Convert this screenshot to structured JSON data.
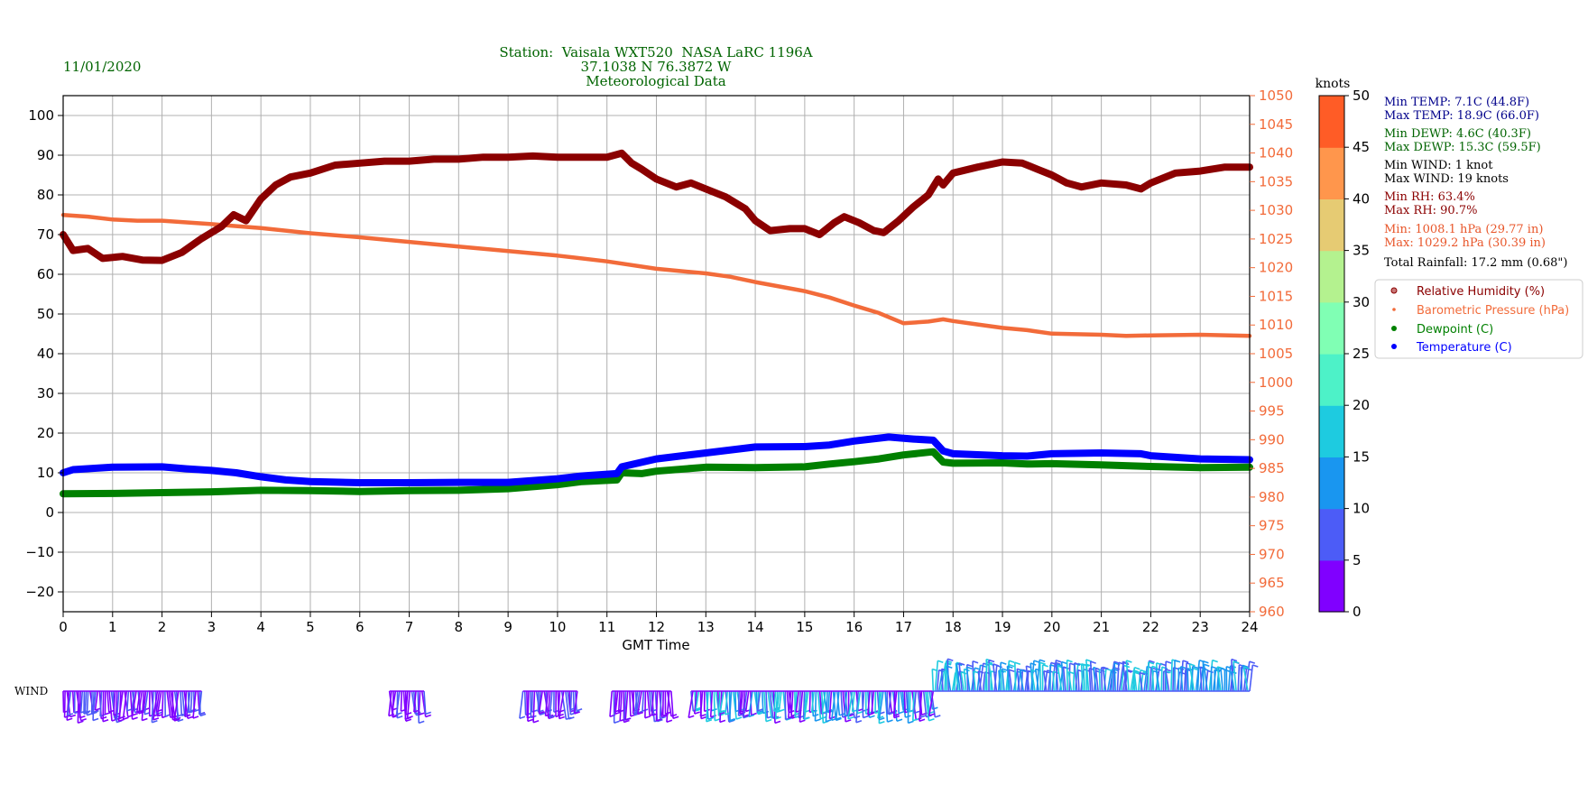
{
  "date": "11/01/2020",
  "title_lines": [
    "Station:  Vaisala WXT520  NASA LaRC 1196A",
    "37.1038 N 76.3872 W",
    "Meteorological Data"
  ],
  "stats": {
    "min_temp": "Min TEMP: 7.1C (44.8F)",
    "max_temp": "Max TEMP: 18.9C (66.0F)",
    "min_dewp": "Min DEWP: 4.6C (40.3F)",
    "max_dewp": "Max DEWP: 15.3C (59.5F)",
    "min_wind": "Min WIND: 1 knot",
    "max_wind": "Max WIND: 19 knots",
    "min_rh": "Min RH: 63.4%",
    "max_rh": "Max RH: 90.7%",
    "min_press": "Min: 1008.1 hPa (29.77 in)",
    "max_press": "Max: 1029.2 hPa (30.39 in)",
    "rainfall": "Total Rainfall: 17.2 mm (0.68\")"
  },
  "colors": {
    "title": "#006400",
    "temp_stats": "#00008b",
    "dewp_stats": "#006400",
    "wind_stats": "#000000",
    "rh_stats": "#8b0000",
    "press_stats": "#e8562a",
    "rh_series": "#8b0000",
    "press_series": "#f26b3a",
    "press_axis": "#f26b3a",
    "dewp_series": "#008000",
    "temp_series": "#0000ff",
    "grid": "#b0b0b0"
  },
  "colorbar": {
    "label": "knots",
    "ticks": [
      "0",
      "5",
      "10",
      "15",
      "20",
      "25",
      "30",
      "35",
      "40",
      "45",
      "50"
    ],
    "colors": [
      "#8000ff",
      "#4c5cf7",
      "#1996f0",
      "#1ecbe0",
      "#4df2c8",
      "#80ffb4",
      "#b4f28f",
      "#e6cb73",
      "#ff964c",
      "#ff5c26",
      "#ff0000"
    ]
  },
  "wind_label": "WIND",
  "chart_data": {
    "type": "line",
    "title": "Station:  Vaisala WXT520  NASA LaRC 1196A\n37.1038 N 76.3872 W\nMeteorological Data",
    "xlabel": "GMT Time",
    "xlim": [
      0,
      24
    ],
    "x_ticks": [
      "0",
      "1",
      "2",
      "3",
      "4",
      "5",
      "6",
      "7",
      "8",
      "9",
      "10",
      "11",
      "12",
      "13",
      "14",
      "15",
      "16",
      "17",
      "18",
      "19",
      "20",
      "21",
      "22",
      "23",
      "24"
    ],
    "ylim_left": [
      -25,
      105
    ],
    "y_ticks_left": [
      "−20",
      "−10",
      "0",
      "10",
      "20",
      "30",
      "40",
      "50",
      "60",
      "70",
      "80",
      "90",
      "100"
    ],
    "ylim_right": [
      960,
      1050
    ],
    "y_ticks_right": [
      "960",
      "965",
      "970",
      "975",
      "980",
      "985",
      "990",
      "995",
      "1000",
      "1005",
      "1010",
      "1015",
      "1020",
      "1025",
      "1030",
      "1035",
      "1040",
      "1045",
      "1050"
    ],
    "grid": true,
    "legend_position": "right",
    "legend": [
      {
        "name": "Relative Humidity (%)",
        "marker": "ring"
      },
      {
        "name": "Barometric Pressure (hPa)",
        "marker": "dot-small"
      },
      {
        "name": "Dewpoint (C)",
        "marker": "dot"
      },
      {
        "name": "Temperature (C)",
        "marker": "dot"
      }
    ],
    "series": [
      {
        "name": "Relative Humidity (%)",
        "axis": "left",
        "points": [
          [
            0,
            70
          ],
          [
            0.2,
            66
          ],
          [
            0.5,
            66.5
          ],
          [
            0.8,
            64
          ],
          [
            1.2,
            64.5
          ],
          [
            1.6,
            63.6
          ],
          [
            2,
            63.5
          ],
          [
            2.4,
            65.5
          ],
          [
            2.8,
            69
          ],
          [
            3.2,
            72
          ],
          [
            3.45,
            75
          ],
          [
            3.7,
            73.5
          ],
          [
            4,
            79
          ],
          [
            4.3,
            82.5
          ],
          [
            4.6,
            84.5
          ],
          [
            5,
            85.5
          ],
          [
            5.5,
            87.5
          ],
          [
            6,
            88
          ],
          [
            6.5,
            88.5
          ],
          [
            7,
            88.5
          ],
          [
            7.5,
            89
          ],
          [
            8,
            89
          ],
          [
            8.5,
            89.5
          ],
          [
            9,
            89.5
          ],
          [
            9.5,
            89.8
          ],
          [
            10,
            89.5
          ],
          [
            10.5,
            89.5
          ],
          [
            11,
            89.5
          ],
          [
            11.3,
            90.5
          ],
          [
            11.5,
            88
          ],
          [
            11.7,
            86.5
          ],
          [
            12,
            84
          ],
          [
            12.4,
            82
          ],
          [
            12.7,
            83
          ],
          [
            13,
            81.5
          ],
          [
            13.4,
            79.5
          ],
          [
            13.8,
            76.5
          ],
          [
            14,
            73.5
          ],
          [
            14.3,
            71
          ],
          [
            14.7,
            71.5
          ],
          [
            15,
            71.5
          ],
          [
            15.3,
            70
          ],
          [
            15.6,
            73
          ],
          [
            15.8,
            74.5
          ],
          [
            16.1,
            73
          ],
          [
            16.4,
            71
          ],
          [
            16.6,
            70.5
          ],
          [
            16.9,
            73.5
          ],
          [
            17.2,
            77
          ],
          [
            17.5,
            80
          ],
          [
            17.7,
            84
          ],
          [
            17.8,
            82.5
          ],
          [
            18,
            85.5
          ],
          [
            18.5,
            87
          ],
          [
            19,
            88.3
          ],
          [
            19.4,
            88
          ],
          [
            19.7,
            86.5
          ],
          [
            20,
            85
          ],
          [
            20.3,
            83
          ],
          [
            20.6,
            82
          ],
          [
            21,
            83
          ],
          [
            21.5,
            82.5
          ],
          [
            21.8,
            81.5
          ],
          [
            22,
            83
          ],
          [
            22.5,
            85.5
          ],
          [
            23,
            86
          ],
          [
            23.5,
            87
          ],
          [
            24,
            87
          ]
        ]
      },
      {
        "name": "Barometric Pressure (hPa)",
        "axis": "right",
        "points": [
          [
            0,
            1029.2
          ],
          [
            0.5,
            1028.9
          ],
          [
            1,
            1028.4
          ],
          [
            1.5,
            1028.2
          ],
          [
            2,
            1028.2
          ],
          [
            3,
            1027.6
          ],
          [
            4,
            1026.9
          ],
          [
            5,
            1026
          ],
          [
            6,
            1025.3
          ],
          [
            7,
            1024.5
          ],
          [
            8,
            1023.7
          ],
          [
            9,
            1022.9
          ],
          [
            10,
            1022.1
          ],
          [
            11,
            1021.1
          ],
          [
            12,
            1019.8
          ],
          [
            13,
            1019
          ],
          [
            13.5,
            1018.4
          ],
          [
            14,
            1017.5
          ],
          [
            15,
            1015.9
          ],
          [
            15.5,
            1014.8
          ],
          [
            16,
            1013.4
          ],
          [
            16.5,
            1012.1
          ],
          [
            17,
            1010.3
          ],
          [
            17.5,
            1010.6
          ],
          [
            17.8,
            1011
          ],
          [
            18,
            1010.7
          ],
          [
            18.5,
            1010.1
          ],
          [
            19,
            1009.5
          ],
          [
            19.5,
            1009.1
          ],
          [
            20,
            1008.5
          ],
          [
            20.5,
            1008.4
          ],
          [
            21,
            1008.3
          ],
          [
            21.5,
            1008.1
          ],
          [
            22,
            1008.2
          ],
          [
            23,
            1008.3
          ],
          [
            24,
            1008.1
          ]
        ]
      },
      {
        "name": "Dewpoint (C)",
        "axis": "left",
        "points": [
          [
            0,
            4.7
          ],
          [
            1,
            4.8
          ],
          [
            2,
            5
          ],
          [
            3,
            5.2
          ],
          [
            4,
            5.6
          ],
          [
            5,
            5.5
          ],
          [
            6,
            5.3
          ],
          [
            7,
            5.5
          ],
          [
            8,
            5.6
          ],
          [
            9,
            6
          ],
          [
            10,
            7
          ],
          [
            10.5,
            7.8
          ],
          [
            11.2,
            8.2
          ],
          [
            11.3,
            10
          ],
          [
            11.7,
            9.8
          ],
          [
            12,
            10.4
          ],
          [
            13,
            11.4
          ],
          [
            14,
            11.3
          ],
          [
            15,
            11.5
          ],
          [
            15.5,
            12.2
          ],
          [
            16,
            12.8
          ],
          [
            16.5,
            13.5
          ],
          [
            17,
            14.5
          ],
          [
            17.6,
            15.3
          ],
          [
            17.8,
            12.7
          ],
          [
            18,
            12.4
          ],
          [
            19,
            12.5
          ],
          [
            19.5,
            12.2
          ],
          [
            20,
            12.3
          ],
          [
            21,
            12
          ],
          [
            22,
            11.6
          ],
          [
            23,
            11.3
          ],
          [
            24,
            11.4
          ]
        ]
      },
      {
        "name": "Temperature (C)",
        "axis": "left",
        "points": [
          [
            0,
            10
          ],
          [
            0.2,
            10.8
          ],
          [
            1,
            11.4
          ],
          [
            2,
            11.5
          ],
          [
            2.5,
            11
          ],
          [
            3,
            10.6
          ],
          [
            3.5,
            10
          ],
          [
            4,
            9
          ],
          [
            4.5,
            8.2
          ],
          [
            5,
            7.8
          ],
          [
            6,
            7.5
          ],
          [
            7,
            7.5
          ],
          [
            8,
            7.6
          ],
          [
            9,
            7.6
          ],
          [
            10,
            8.5
          ],
          [
            10.5,
            9.2
          ],
          [
            11.2,
            9.8
          ],
          [
            11.3,
            11.5
          ],
          [
            12,
            13.5
          ],
          [
            13,
            15
          ],
          [
            14,
            16.5
          ],
          [
            15,
            16.6
          ],
          [
            15.5,
            17
          ],
          [
            16,
            18
          ],
          [
            16.7,
            19
          ],
          [
            17.2,
            18.5
          ],
          [
            17.6,
            18.2
          ],
          [
            17.8,
            15.5
          ],
          [
            18,
            14.8
          ],
          [
            19,
            14.3
          ],
          [
            19.5,
            14.2
          ],
          [
            20,
            14.8
          ],
          [
            21,
            15
          ],
          [
            21.8,
            14.8
          ],
          [
            22,
            14.3
          ],
          [
            23,
            13.5
          ],
          [
            24,
            13.3
          ]
        ]
      }
    ]
  }
}
